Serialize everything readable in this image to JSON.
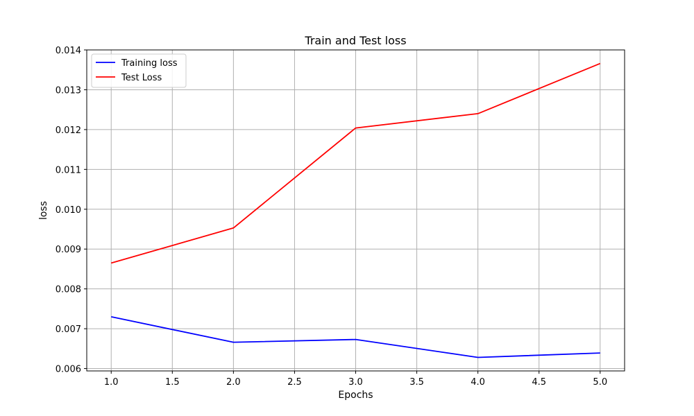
{
  "chart_data": {
    "type": "line",
    "title": "Train and Test loss",
    "xlabel": "Epochs",
    "ylabel": "loss",
    "x": [
      1.0,
      2.0,
      3.0,
      4.0,
      5.0
    ],
    "series": [
      {
        "name": "Training loss",
        "color": "#0000ff",
        "values": [
          0.0073,
          0.00666,
          0.00673,
          0.00628,
          0.00639
        ]
      },
      {
        "name": "Test Loss",
        "color": "#ff0000",
        "values": [
          0.00865,
          0.00953,
          0.01204,
          0.0124,
          0.01366
        ]
      }
    ],
    "xlim": [
      0.8,
      5.2
    ],
    "ylim": [
      0.00594,
      0.014
    ],
    "xticks": [
      "1.0",
      "1.5",
      "2.0",
      "2.5",
      "3.0",
      "3.5",
      "4.0",
      "4.5",
      "5.0"
    ],
    "yticks": [
      "0.006",
      "0.007",
      "0.008",
      "0.009",
      "0.010",
      "0.011",
      "0.012",
      "0.013",
      "0.014"
    ],
    "grid": true,
    "legend_position": "top-left"
  }
}
